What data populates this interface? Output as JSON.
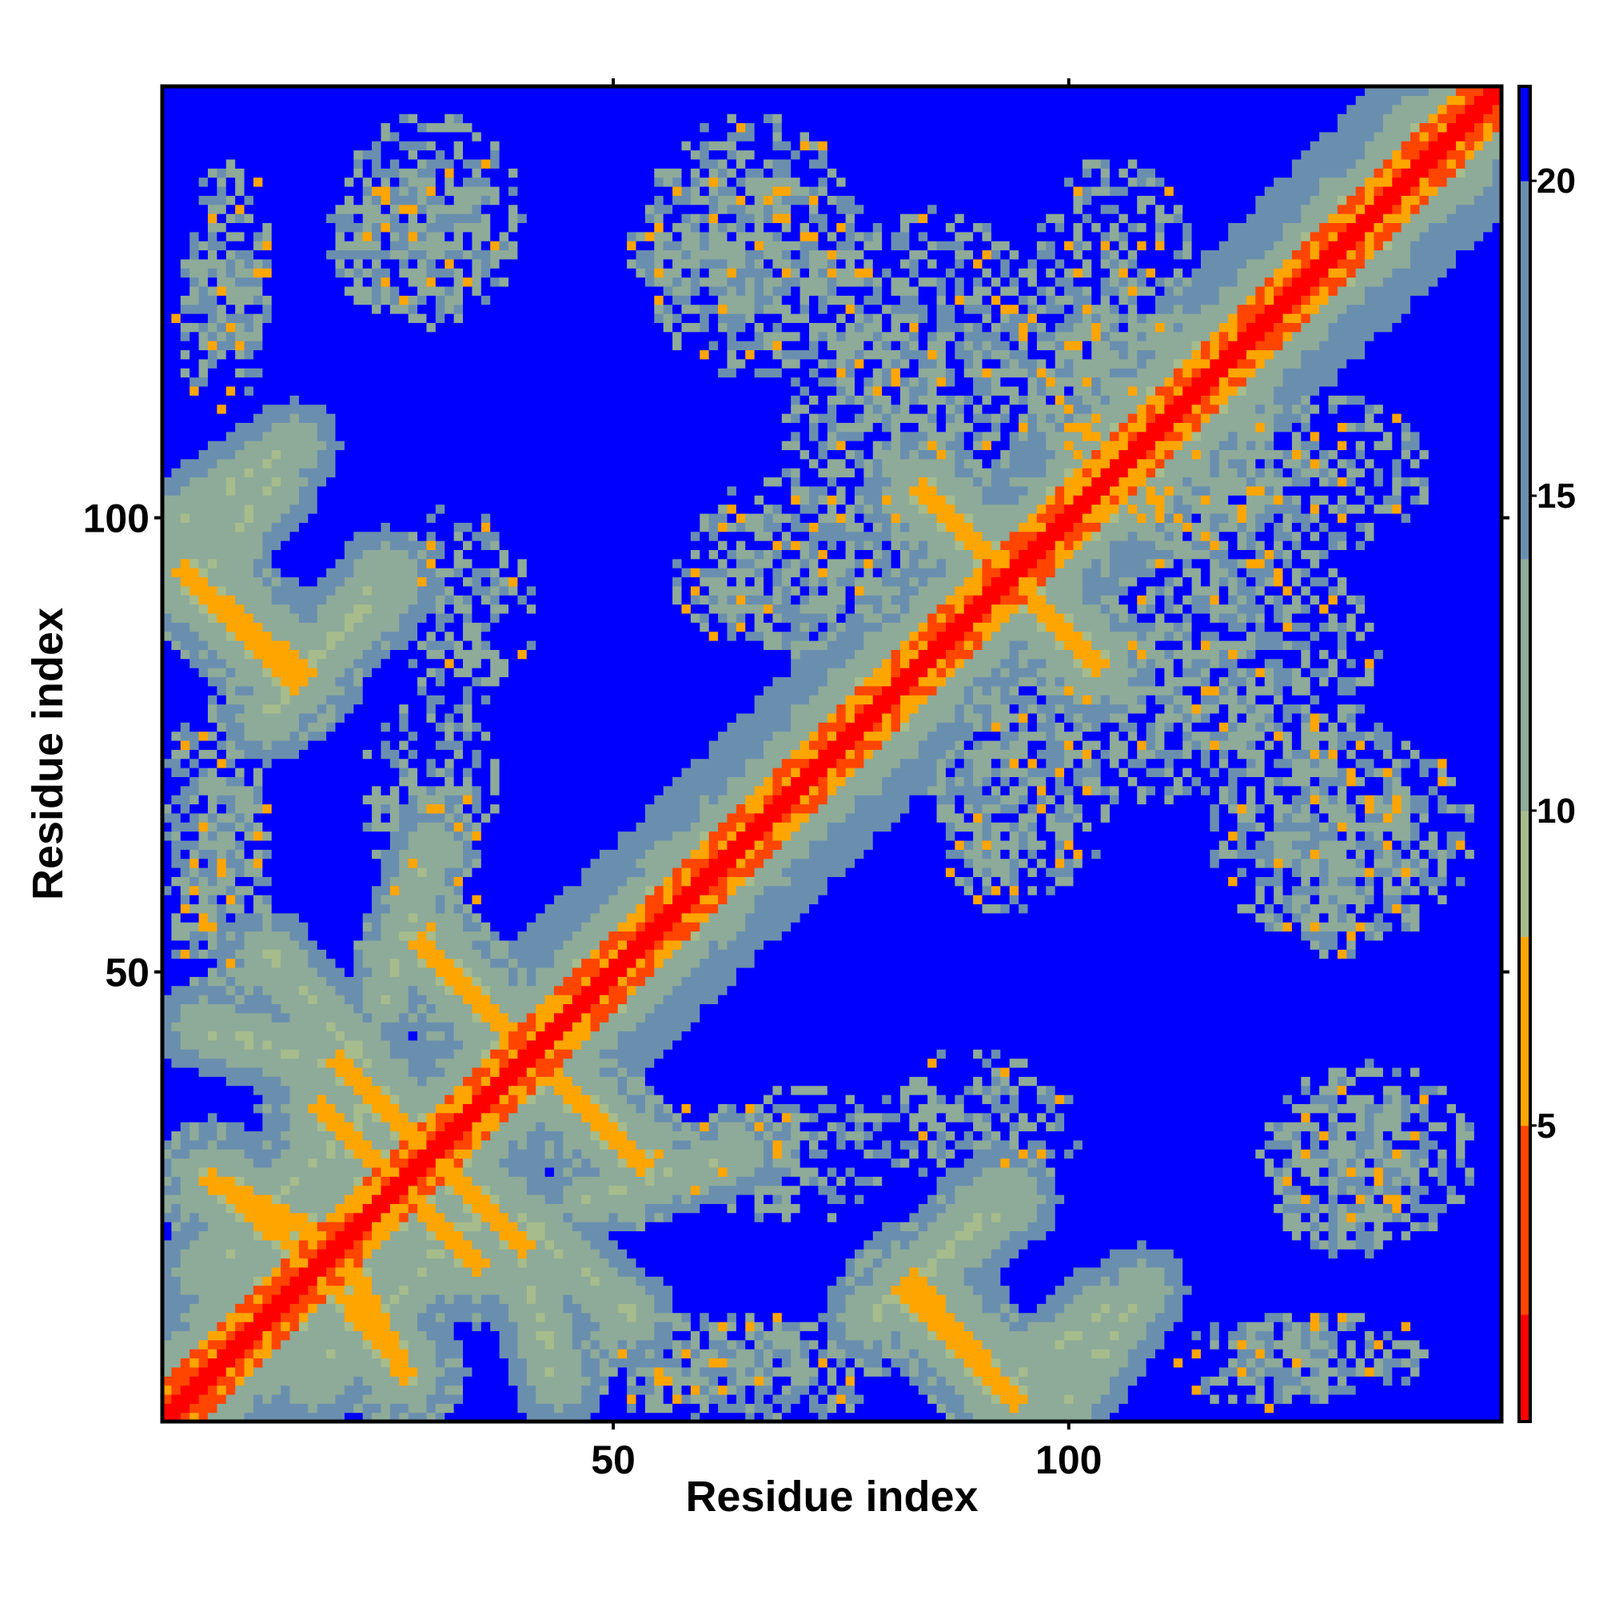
{
  "chart_data": {
    "type": "heatmap",
    "title": "",
    "xlabel": "Residue index",
    "ylabel": "Residue index",
    "n": 147,
    "xlim": [
      0.5,
      147.5
    ],
    "ylim": [
      0.5,
      147.5
    ],
    "x_ticks": [
      50,
      100
    ],
    "x_tick_labels": [
      "50",
      "100"
    ],
    "y_ticks": [
      50,
      100
    ],
    "y_tick_labels": [
      "50",
      "100"
    ],
    "grid": false,
    "legend": "colorbar right",
    "colorbar": {
      "range": [
        0.3,
        21.5
      ],
      "ticks": [
        5,
        10,
        15,
        20
      ],
      "tick_labels": [
        "5",
        "10",
        "15",
        "20"
      ],
      "palette": [
        {
          "max": 2.0,
          "color": "#ff0000"
        },
        {
          "max": 5.0,
          "color": "#ff4500"
        },
        {
          "max": 8.0,
          "color": "#ffa500"
        },
        {
          "max": 10.0,
          "color": "#a6bc8c"
        },
        {
          "max": 14.0,
          "color": "#8eaa99"
        },
        {
          "max": 20.0,
          "color": "#6a8fae"
        },
        {
          "max": 99,
          "color": "#0000ff"
        }
      ]
    },
    "matrix_description_note": "",
    "diagonal_band": {
      "core_halfwidth": 1.2,
      "orange_halfwidth": 3,
      "green_halfwidth": 10
    },
    "contact_lines": [
      {
        "p1": [
          18,
          35
        ],
        "p2": [
          28,
          25
        ],
        "w": 1.0
      },
      {
        "p1": [
          3,
          94
        ],
        "p2": [
          15,
          82
        ],
        "w": 1.0
      },
      {
        "p1": [
          29,
          53
        ],
        "p2": [
          40,
          42
        ],
        "w": 1.0
      },
      {
        "p1": [
          42,
          40
        ],
        "p2": [
          53,
          29
        ],
        "w": 1.0
      },
      {
        "p1": [
          30,
          30
        ],
        "p2": [
          40,
          20
        ],
        "w": 1.0
      },
      {
        "p1": [
          20,
          20
        ],
        "p2": [
          27,
          6
        ],
        "w": 1.0
      },
      {
        "p1": [
          84,
          103
        ],
        "p2": [
          100,
          87
        ],
        "w": 1.0
      },
      {
        "p1": [
          83,
          16
        ],
        "p2": [
          94,
          3
        ],
        "w": 1.0
      },
      {
        "p1": [
          6,
          27
        ],
        "p2": [
          17,
          18
        ],
        "w": 0.9
      }
    ],
    "green_lines": [
      {
        "p1": [
          3,
          100
        ],
        "p2": [
          15,
          108
        ],
        "w": 3
      },
      {
        "p1": [
          16,
          83
        ],
        "p2": [
          26,
          93
        ],
        "w": 3
      },
      {
        "p1": [
          40,
          23
        ],
        "p2": [
          52,
          12
        ],
        "w": 3
      },
      {
        "p1": [
          17,
          5
        ],
        "p2": [
          37,
          25
        ],
        "w": 3
      },
      {
        "p1": [
          5,
          44
        ],
        "p2": [
          25,
          38
        ],
        "w": 3
      },
      {
        "p1": [
          92,
          3
        ],
        "p2": [
          104,
          13
        ],
        "w": 3
      },
      {
        "p1": [
          78,
          12
        ],
        "p2": [
          94,
          25
        ],
        "w": 3
      },
      {
        "p1": [
          47,
          25
        ],
        "p2": [
          64,
          30
        ],
        "w": 2.5
      }
    ],
    "blobs": [
      {
        "cx": 7,
        "cy": 122,
        "rx": 5,
        "ry": 10,
        "d": 0.7
      },
      {
        "cx": 28,
        "cy": 130,
        "rx": 10,
        "ry": 8,
        "d": 0.75
      },
      {
        "cx": 65,
        "cy": 130,
        "rx": 14,
        "ry": 8,
        "d": 0.7
      },
      {
        "cx": 78,
        "cy": 110,
        "rx": 10,
        "ry": 12,
        "d": 0.65
      },
      {
        "cx": 97,
        "cy": 115,
        "rx": 8,
        "ry": 12,
        "d": 0.6
      },
      {
        "cx": 108,
        "cy": 113,
        "rx": 12,
        "ry": 12,
        "d": 0.7
      },
      {
        "cx": 120,
        "cy": 105,
        "rx": 20,
        "ry": 10,
        "d": 0.7
      },
      {
        "cx": 70,
        "cy": 93,
        "rx": 14,
        "ry": 8,
        "d": 0.65
      },
      {
        "cx": 33,
        "cy": 90,
        "rx": 9,
        "ry": 9,
        "d": 0.45
      },
      {
        "cx": 6,
        "cy": 65,
        "rx": 6,
        "ry": 15,
        "d": 0.65
      },
      {
        "cx": 30,
        "cy": 70,
        "rx": 8,
        "ry": 10,
        "d": 0.55
      },
      {
        "cx": 95,
        "cy": 70,
        "rx": 10,
        "ry": 12,
        "d": 0.65
      },
      {
        "cx": 130,
        "cy": 65,
        "rx": 15,
        "ry": 12,
        "d": 0.65
      },
      {
        "cx": 120,
        "cy": 85,
        "rx": 14,
        "ry": 12,
        "d": 0.65
      },
      {
        "cx": 133,
        "cy": 30,
        "rx": 12,
        "ry": 10,
        "d": 0.65
      },
      {
        "cx": 128,
        "cy": 8,
        "rx": 12,
        "ry": 5,
        "d": 0.7
      },
      {
        "cx": 90,
        "cy": 33,
        "rx": 12,
        "ry": 7,
        "d": 0.35
      },
      {
        "cx": 63,
        "cy": 30,
        "rx": 10,
        "ry": 6,
        "d": 0.6
      },
      {
        "cx": 60,
        "cy": 7,
        "rx": 15,
        "ry": 6,
        "d": 0.65
      }
    ]
  }
}
